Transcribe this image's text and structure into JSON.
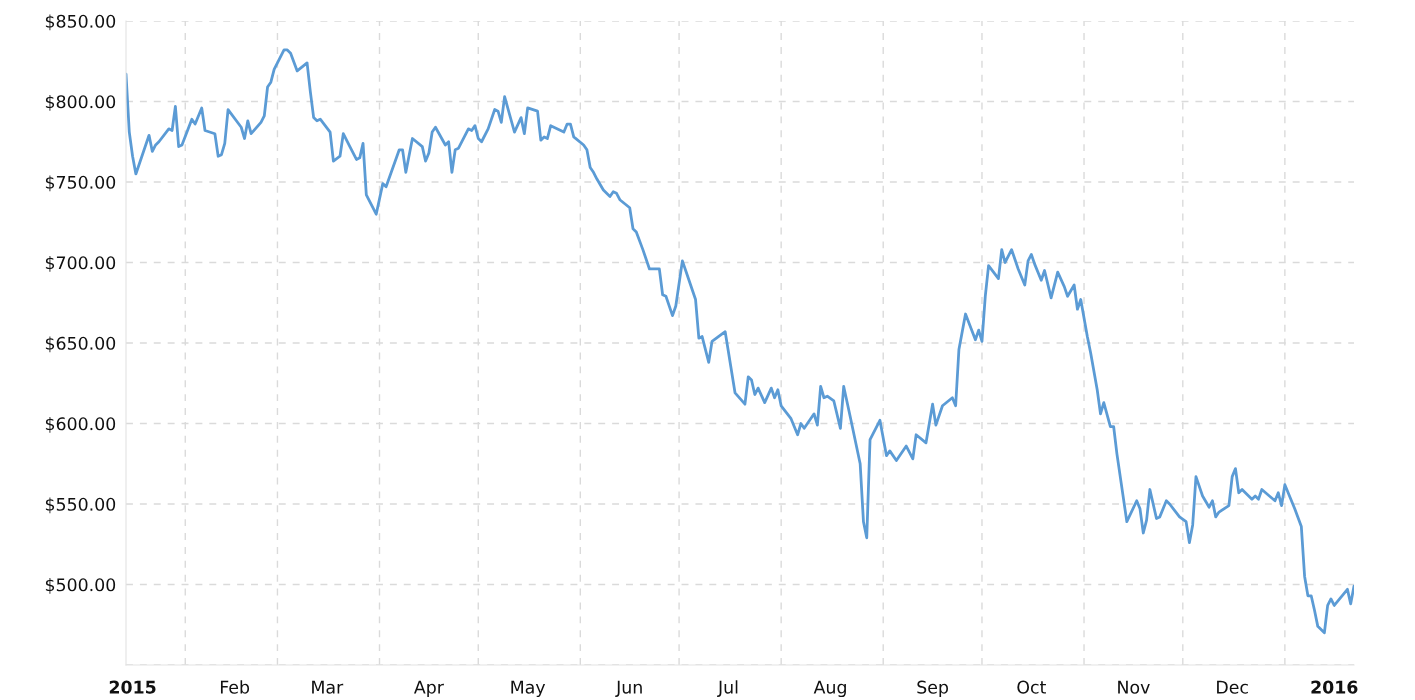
{
  "chart_data": {
    "type": "line",
    "x": [
      "2015-01-14",
      "2015-01-15",
      "2015-01-16",
      "2015-01-17",
      "2015-01-21",
      "2015-01-22",
      "2015-01-23",
      "2015-01-24",
      "2015-01-27",
      "2015-01-28",
      "2015-01-29",
      "2015-01-30",
      "2015-01-31",
      "2015-02-03",
      "2015-02-04",
      "2015-02-06",
      "2015-02-07",
      "2015-02-10",
      "2015-02-11",
      "2015-02-12",
      "2015-02-13",
      "2015-02-14",
      "2015-02-18",
      "2015-02-19",
      "2015-02-20",
      "2015-02-21",
      "2015-02-24",
      "2015-02-25",
      "2015-02-26",
      "2015-02-27",
      "2015-02-28",
      "2015-03-03",
      "2015-03-04",
      "2015-03-05",
      "2015-03-07",
      "2015-03-10",
      "2015-03-11",
      "2015-03-12",
      "2015-03-13",
      "2015-03-14",
      "2015-03-17",
      "2015-03-18",
      "2015-03-20",
      "2015-03-21",
      "2015-03-23",
      "2015-03-25",
      "2015-03-26",
      "2015-03-27",
      "2015-03-28",
      "2015-03-31",
      "2015-04-02",
      "2015-04-03",
      "2015-04-07",
      "2015-04-08",
      "2015-04-09",
      "2015-04-11",
      "2015-04-14",
      "2015-04-15",
      "2015-04-16",
      "2015-04-17",
      "2015-04-18",
      "2015-04-21",
      "2015-04-22",
      "2015-04-23",
      "2015-04-24",
      "2015-04-25",
      "2015-04-28",
      "2015-04-29",
      "2015-04-30",
      "2015-05-01",
      "2015-05-02",
      "2015-05-04",
      "2015-05-06",
      "2015-05-07",
      "2015-05-08",
      "2015-05-09",
      "2015-05-12",
      "2015-05-14",
      "2015-05-15",
      "2015-05-16",
      "2015-05-19",
      "2015-05-20",
      "2015-05-21",
      "2015-05-22",
      "2015-05-23",
      "2015-05-27",
      "2015-05-28",
      "2015-05-29",
      "2015-05-30",
      "2015-06-02",
      "2015-06-03",
      "2015-06-04",
      "2015-06-05",
      "2015-06-06",
      "2015-06-08",
      "2015-06-10",
      "2015-06-11",
      "2015-06-12",
      "2015-06-13",
      "2015-06-16",
      "2015-06-17",
      "2015-06-18",
      "2015-06-20",
      "2015-06-22",
      "2015-06-25",
      "2015-06-26",
      "2015-06-27",
      "2015-06-29",
      "2015-06-30",
      "2015-07-02",
      "2015-07-03",
      "2015-07-06",
      "2015-07-07",
      "2015-07-08",
      "2015-07-10",
      "2015-07-11",
      "2015-07-15",
      "2015-07-18",
      "2015-07-21",
      "2015-07-22",
      "2015-07-23",
      "2015-07-24",
      "2015-07-25",
      "2015-07-27",
      "2015-07-29",
      "2015-07-30",
      "2015-07-31",
      "2015-08-01",
      "2015-08-04",
      "2015-08-06",
      "2015-08-07",
      "2015-08-08",
      "2015-08-11",
      "2015-08-12",
      "2015-08-13",
      "2015-08-14",
      "2015-08-15",
      "2015-08-17",
      "2015-08-19",
      "2015-08-20",
      "2015-08-22",
      "2015-08-25",
      "2015-08-26",
      "2015-08-27",
      "2015-08-28",
      "2015-08-31",
      "2015-09-02",
      "2015-09-03",
      "2015-09-05",
      "2015-09-08",
      "2015-09-10",
      "2015-09-11",
      "2015-09-14",
      "2015-09-16",
      "2015-09-17",
      "2015-09-19",
      "2015-09-22",
      "2015-09-23",
      "2015-09-24",
      "2015-09-26",
      "2015-09-29",
      "2015-09-30",
      "2015-10-01",
      "2015-10-02",
      "2015-10-03",
      "2015-10-06",
      "2015-10-07",
      "2015-10-08",
      "2015-10-10",
      "2015-10-12",
      "2015-10-14",
      "2015-10-15",
      "2015-10-16",
      "2015-10-17",
      "2015-10-19",
      "2015-10-20",
      "2015-10-22",
      "2015-10-24",
      "2015-10-26",
      "2015-10-27",
      "2015-10-29",
      "2015-10-30",
      "2015-10-31",
      "2015-11-02",
      "2015-11-03",
      "2015-11-05",
      "2015-11-06",
      "2015-11-07",
      "2015-11-09",
      "2015-11-10",
      "2015-11-11",
      "2015-11-14",
      "2015-11-17",
      "2015-11-18",
      "2015-11-19",
      "2015-11-20",
      "2015-11-21",
      "2015-11-23",
      "2015-11-24",
      "2015-11-26",
      "2015-11-27",
      "2015-11-30",
      "2015-12-02",
      "2015-12-03",
      "2015-12-04",
      "2015-12-05",
      "2015-12-07",
      "2015-12-09",
      "2015-12-10",
      "2015-12-11",
      "2015-12-12",
      "2015-12-15",
      "2015-12-16",
      "2015-12-17",
      "2015-12-18",
      "2015-12-19",
      "2015-12-22",
      "2015-12-23",
      "2015-12-24",
      "2015-12-25",
      "2015-12-29",
      "2015-12-30",
      "2015-12-31",
      "2016-01-01",
      "2016-01-04",
      "2016-01-06",
      "2016-01-07",
      "2016-01-08",
      "2016-01-09",
      "2016-01-10",
      "2016-01-11",
      "2016-01-13",
      "2016-01-14",
      "2016-01-15",
      "2016-01-16",
      "2016-01-20",
      "2016-01-21",
      "2016-01-22"
    ],
    "series": [
      {
        "color": "#5b9bd5",
        "values": [
          817,
          781,
          766,
          755,
          779,
          769,
          773,
          775,
          783,
          782,
          797,
          772,
          773,
          789,
          786,
          796,
          782,
          780,
          766,
          767,
          774,
          795,
          784,
          777,
          788,
          780,
          787,
          791,
          809,
          812,
          820,
          832,
          832,
          830,
          819,
          824,
          806,
          790,
          788,
          789,
          781,
          763,
          766,
          780,
          772,
          764,
          765,
          774,
          742,
          730,
          749,
          747,
          770,
          770,
          756,
          777,
          772,
          763,
          768,
          781,
          784,
          773,
          775,
          756,
          770,
          771,
          783,
          782,
          785,
          777,
          775,
          783,
          795,
          794,
          787,
          803,
          781,
          790,
          780,
          796,
          794,
          776,
          778,
          777,
          785,
          781,
          786,
          786,
          778,
          773,
          770,
          759,
          756,
          752,
          745,
          741,
          744,
          743,
          739,
          734,
          721,
          719,
          708,
          696,
          696,
          680,
          679,
          667,
          673,
          701,
          695,
          677,
          653,
          654,
          638,
          651,
          657,
          619,
          612,
          629,
          627,
          618,
          622,
          613,
          622,
          616,
          621,
          611,
          603,
          593,
          600,
          597,
          606,
          599,
          623,
          616,
          617,
          614,
          597,
          623,
          604,
          575,
          539,
          529,
          590,
          602,
          580,
          583,
          577,
          586,
          578,
          593,
          588,
          612,
          599,
          611,
          616,
          611,
          646,
          668,
          652,
          658,
          651,
          679,
          698,
          690,
          708,
          700,
          708,
          696,
          686,
          701,
          705,
          699,
          689,
          695,
          678,
          694,
          685,
          679,
          686,
          671,
          677,
          654,
          644,
          621,
          606,
          613,
          598,
          598,
          581,
          539,
          552,
          547,
          532,
          540,
          559,
          541,
          542,
          552,
          550,
          542,
          539,
          526,
          537,
          567,
          555,
          548,
          552,
          542,
          545,
          549,
          567,
          572,
          557,
          559,
          553,
          555,
          553,
          559,
          552,
          557,
          549,
          562,
          547,
          536,
          505,
          493,
          493,
          484,
          474,
          470,
          487,
          491,
          487,
          497,
          488,
          499
        ]
      }
    ],
    "xlim": [
      "2015-01-14",
      "2016-01-22"
    ],
    "xticks": [
      {
        "value": "2015-01-16",
        "label": "2015"
      },
      {
        "value": "2015-02-01",
        "label": null
      },
      {
        "value": "2015-02-16",
        "label": "Feb"
      },
      {
        "value": "2015-03-01",
        "label": null
      },
      {
        "value": "2015-03-16",
        "label": "Mar"
      },
      {
        "value": "2015-04-01",
        "label": null
      },
      {
        "value": "2015-04-16",
        "label": "Apr"
      },
      {
        "value": "2015-05-01",
        "label": null
      },
      {
        "value": "2015-05-16",
        "label": "May"
      },
      {
        "value": "2015-06-01",
        "label": null
      },
      {
        "value": "2015-06-16",
        "label": "Jun"
      },
      {
        "value": "2015-07-01",
        "label": null
      },
      {
        "value": "2015-07-16",
        "label": "Jul"
      },
      {
        "value": "2015-08-01",
        "label": null
      },
      {
        "value": "2015-08-16",
        "label": "Aug"
      },
      {
        "value": "2015-09-01",
        "label": null
      },
      {
        "value": "2015-09-16",
        "label": "Sep"
      },
      {
        "value": "2015-10-01",
        "label": null
      },
      {
        "value": "2015-10-16",
        "label": "Oct"
      },
      {
        "value": "2015-11-01",
        "label": null
      },
      {
        "value": "2015-11-16",
        "label": "Nov"
      },
      {
        "value": "2015-12-01",
        "label": null
      },
      {
        "value": "2015-12-16",
        "label": "Dec"
      },
      {
        "value": "2016-01-01",
        "label": null
      },
      {
        "value": "2016-01-16",
        "label": "2016"
      }
    ],
    "ylim": [
      450,
      850
    ],
    "yticks": [
      {
        "value": 450,
        "label": null
      },
      {
        "value": 500,
        "label": "$500.00"
      },
      {
        "value": 550,
        "label": "$550.00"
      },
      {
        "value": 600,
        "label": "$600.00"
      },
      {
        "value": 650,
        "label": "$650.00"
      },
      {
        "value": 700,
        "label": "$700.00"
      },
      {
        "value": 750,
        "label": "$750.00"
      },
      {
        "value": 800,
        "label": "$800.00"
      },
      {
        "value": 850,
        "label": "$850.00"
      }
    ],
    "grid": true
  }
}
